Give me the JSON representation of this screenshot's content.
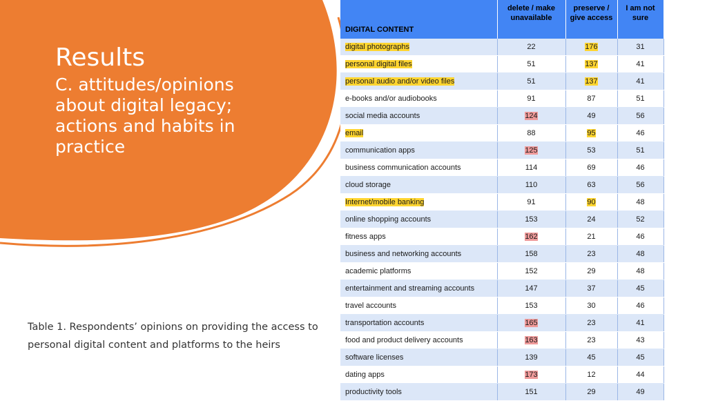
{
  "slide": {
    "title": "Results",
    "subtitle": "C. attitudes/opinions about digital legacy; actions and habits in practice",
    "caption": "Table 1. Respondents’ opinions on providing the access to personal digital content and platforms to the heirs"
  },
  "colors": {
    "accent_orange": "#ed7d31",
    "header_blue": "#4285f4",
    "row_band": "#dce7f8",
    "highlight_yellow": "#ffd530",
    "highlight_red": "#ef9a9a"
  },
  "table": {
    "headers": [
      "DIGITAL CONTENT",
      "delete / make unavailable",
      "preserve / give access",
      "I am not sure"
    ],
    "rows": [
      {
        "name": "digital photographs",
        "delete": "22",
        "preserve": "176",
        "unsure": "31",
        "name_hl": "yellow",
        "hl": "preserve"
      },
      {
        "name": "personal digital files",
        "delete": "51",
        "preserve": "137",
        "unsure": "41",
        "name_hl": "yellow",
        "hl": "preserve"
      },
      {
        "name": "personal audio and/or video files",
        "delete": "51",
        "preserve": "137",
        "unsure": "41",
        "name_hl": "yellow",
        "hl": "preserve"
      },
      {
        "name": "e-books and/or audiobooks",
        "delete": "91",
        "preserve": "87",
        "unsure": "51",
        "name_hl": "",
        "hl": ""
      },
      {
        "name": "social media accounts",
        "delete": "124",
        "preserve": "49",
        "unsure": "56",
        "name_hl": "",
        "hl": "delete"
      },
      {
        "name": "email",
        "delete": "88",
        "preserve": "95",
        "unsure": "46",
        "name_hl": "yellow",
        "hl": "preserve"
      },
      {
        "name": "communication apps",
        "delete": "125",
        "preserve": "53",
        "unsure": "51",
        "name_hl": "",
        "hl": "delete"
      },
      {
        "name": "business communication accounts",
        "delete": "114",
        "preserve": "69",
        "unsure": "46",
        "name_hl": "",
        "hl": ""
      },
      {
        "name": "cloud storage",
        "delete": "110",
        "preserve": "63",
        "unsure": "56",
        "name_hl": "",
        "hl": ""
      },
      {
        "name": "Internet/mobile banking",
        "delete": "91",
        "preserve": "90",
        "unsure": "48",
        "name_hl": "yellow",
        "hl": "preserve"
      },
      {
        "name": "online shopping accounts",
        "delete": "153",
        "preserve": "24",
        "unsure": "52",
        "name_hl": "",
        "hl": ""
      },
      {
        "name": "fitness apps",
        "delete": "162",
        "preserve": "21",
        "unsure": "46",
        "name_hl": "",
        "hl": "delete"
      },
      {
        "name": "business and networking accounts",
        "delete": "158",
        "preserve": "23",
        "unsure": "48",
        "name_hl": "",
        "hl": ""
      },
      {
        "name": "academic platforms",
        "delete": "152",
        "preserve": "29",
        "unsure": "48",
        "name_hl": "",
        "hl": ""
      },
      {
        "name": "entertainment and streaming accounts",
        "delete": "147",
        "preserve": "37",
        "unsure": "45",
        "name_hl": "",
        "hl": ""
      },
      {
        "name": "travel accounts",
        "delete": "153",
        "preserve": "30",
        "unsure": "46",
        "name_hl": "",
        "hl": ""
      },
      {
        "name": "transportation accounts",
        "delete": "165",
        "preserve": "23",
        "unsure": "41",
        "name_hl": "",
        "hl": "delete"
      },
      {
        "name": "food and product delivery accounts",
        "delete": "163",
        "preserve": "23",
        "unsure": "43",
        "name_hl": "",
        "hl": "delete"
      },
      {
        "name": "software licenses",
        "delete": "139",
        "preserve": "45",
        "unsure": "45",
        "name_hl": "",
        "hl": ""
      },
      {
        "name": "dating apps",
        "delete": "173",
        "preserve": "12",
        "unsure": "44",
        "name_hl": "",
        "hl": "delete"
      },
      {
        "name": "productivity tools",
        "delete": "151",
        "preserve": "29",
        "unsure": "49",
        "name_hl": "",
        "hl": ""
      }
    ]
  }
}
